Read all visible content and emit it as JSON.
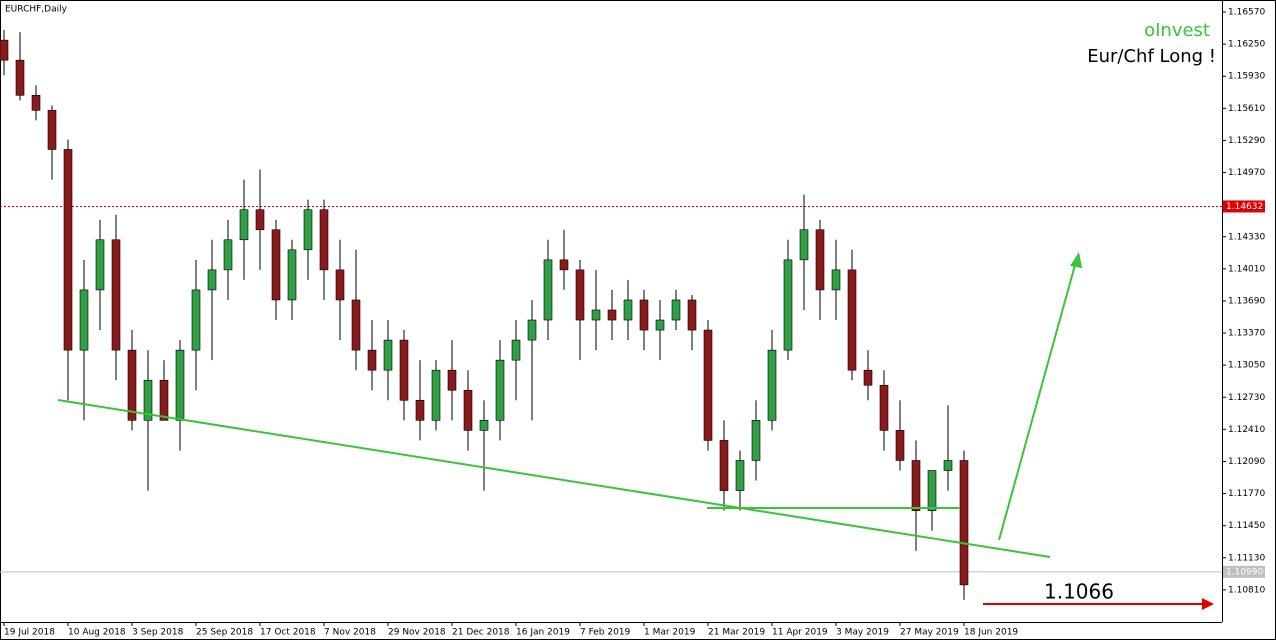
{
  "chart_data": {
    "type": "candlestick",
    "title": "EURCHF,Daily",
    "categories": [
      "19 Jul 2018",
      null,
      null,
      null,
      "10 Aug 2018",
      null,
      null,
      null,
      "3 Sep 2018",
      null,
      null,
      null,
      "25 Sep 2018",
      null,
      null,
      null,
      "17 Oct 2018",
      null,
      null,
      null,
      "7 Nov 2018",
      null,
      null,
      null,
      "29 Nov 2018",
      null,
      null,
      null,
      "21 Dec 2018",
      null,
      null,
      null,
      "16 Jan 2019",
      null,
      null,
      null,
      "7 Feb 2019",
      null,
      null,
      null,
      "1 Mar 2019",
      null,
      null,
      null,
      "21 Mar 2019",
      null,
      null,
      null,
      "11 Apr 2019",
      null,
      null,
      null,
      "3 May 2019",
      null,
      null,
      null,
      "27 May 2019",
      null,
      null,
      null,
      "18 Jun 2019"
    ],
    "open": [
      1.1629,
      1.1609,
      1.1574,
      1.1559,
      1.152,
      1.132,
      1.138,
      1.143,
      1.132,
      1.125,
      1.129,
      1.125,
      1.132,
      1.138,
      1.14,
      1.143,
      1.146,
      1.144,
      1.137,
      1.142,
      1.146,
      1.14,
      1.137,
      1.132,
      1.13,
      1.133,
      1.127,
      1.125,
      1.13,
      1.128,
      1.124,
      1.125,
      1.131,
      1.133,
      1.135,
      1.141,
      1.14,
      1.135,
      1.136,
      1.135,
      1.137,
      1.134,
      1.135,
      1.137,
      1.134,
      1.123,
      1.118,
      1.121,
      1.125,
      1.132,
      1.141,
      1.144,
      1.138,
      1.14,
      1.13,
      1.1285,
      1.124,
      1.121,
      1.116,
      1.12,
      1.121
    ],
    "high": [
      1.1639,
      1.1637,
      1.1584,
      1.1564,
      1.153,
      1.141,
      1.145,
      1.1455,
      1.134,
      1.132,
      1.131,
      1.133,
      1.141,
      1.143,
      1.145,
      1.149,
      1.15,
      1.145,
      1.143,
      1.147,
      1.147,
      1.143,
      1.142,
      1.135,
      1.135,
      1.134,
      1.131,
      1.131,
      1.133,
      1.13,
      1.127,
      1.133,
      1.135,
      1.137,
      1.143,
      1.144,
      1.141,
      1.14,
      1.138,
      1.139,
      1.138,
      1.137,
      1.138,
      1.1375,
      1.135,
      1.125,
      1.122,
      1.127,
      1.134,
      1.143,
      1.1475,
      1.145,
      1.143,
      1.142,
      1.132,
      1.13,
      1.127,
      1.123,
      1.12,
      1.1265,
      1.122
    ],
    "low": [
      1.1594,
      1.1569,
      1.1549,
      1.149,
      1.127,
      1.125,
      1.134,
      1.129,
      1.124,
      1.118,
      1.125,
      1.122,
      1.128,
      1.131,
      1.137,
      1.139,
      1.14,
      1.135,
      1.135,
      1.139,
      1.137,
      1.133,
      1.13,
      1.128,
      1.127,
      1.125,
      1.123,
      1.124,
      1.125,
      1.122,
      1.118,
      1.123,
      1.127,
      1.125,
      1.133,
      1.138,
      1.131,
      1.132,
      1.133,
      1.133,
      1.132,
      1.131,
      1.134,
      1.132,
      1.122,
      1.116,
      1.116,
      1.119,
      1.124,
      1.131,
      1.136,
      1.135,
      1.135,
      1.129,
      1.127,
      1.122,
      1.12,
      1.112,
      1.114,
      1.118,
      1.1071
    ],
    "close": [
      1.1609,
      1.1574,
      1.1559,
      1.152,
      1.132,
      1.138,
      1.143,
      1.132,
      1.125,
      1.129,
      1.125,
      1.132,
      1.138,
      1.14,
      1.143,
      1.146,
      1.144,
      1.137,
      1.142,
      1.146,
      1.14,
      1.137,
      1.132,
      1.13,
      1.133,
      1.127,
      1.125,
      1.13,
      1.128,
      1.124,
      1.125,
      1.131,
      1.133,
      1.135,
      1.141,
      1.14,
      1.135,
      1.136,
      1.135,
      1.137,
      1.134,
      1.135,
      1.137,
      1.134,
      1.123,
      1.118,
      1.121,
      1.125,
      1.132,
      1.141,
      1.144,
      1.138,
      1.14,
      1.13,
      1.1285,
      1.124,
      1.121,
      1.116,
      1.12,
      1.121,
      1.1086
    ],
    "up_color": "#2f9e44",
    "down_color": "#8b1a1a",
    "ylim": [
      1.1049,
      1.1669
    ],
    "yticks": [
      {
        "value": 1.1657,
        "label": "1.16570"
      },
      {
        "value": 1.1625,
        "label": "1.16250"
      },
      {
        "value": 1.1593,
        "label": "1.15930"
      },
      {
        "value": 1.1561,
        "label": "1.15610"
      },
      {
        "value": 1.1529,
        "label": "1.15290"
      },
      {
        "value": 1.1497,
        "label": "1.14970"
      },
      {
        "value": 1.1433,
        "label": "1.14330"
      },
      {
        "value": 1.1401,
        "label": "1.14010"
      },
      {
        "value": 1.1369,
        "label": "1.13690"
      },
      {
        "value": 1.1337,
        "label": "1.13370"
      },
      {
        "value": 1.1305,
        "label": "1.13050"
      },
      {
        "value": 1.1273,
        "label": "1.12730"
      },
      {
        "value": 1.1241,
        "label": "1.12410"
      },
      {
        "value": 1.1209,
        "label": "1.12090"
      },
      {
        "value": 1.1177,
        "label": "1.11770"
      },
      {
        "value": 1.1145,
        "label": "1.11450"
      },
      {
        "value": 1.1113,
        "label": "1.11130"
      },
      {
        "value": 1.1081,
        "label": "1.10810"
      }
    ],
    "marked_level": 1.14632,
    "bid": {
      "value": 1.1099,
      "label": "1.10990"
    },
    "brand": "oInvest",
    "headline": "Eur/Chf Long !",
    "target": 1.1066
  }
}
